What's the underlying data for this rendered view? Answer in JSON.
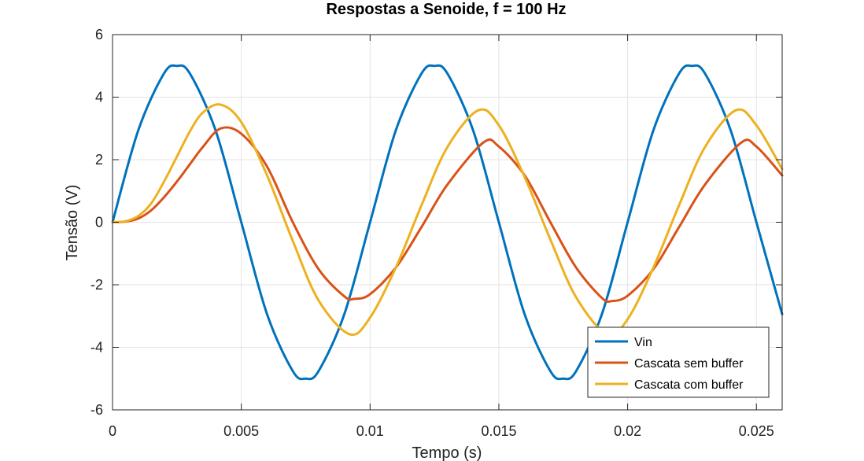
{
  "chart_data": {
    "type": "line",
    "title": "Respostas a Senoide, f = 100 Hz",
    "xlabel": "Tempo (s)",
    "ylabel": "Tensão (V)",
    "xlim": [
      0,
      0.026
    ],
    "ylim": [
      -6,
      6
    ],
    "grid": true,
    "legend_position": "bottom-right",
    "x_ticks": [
      0,
      0.005,
      0.01,
      0.015,
      0.02,
      0.025
    ],
    "x_tick_labels": [
      "0",
      "0.005",
      "0.01",
      "0.015",
      "0.02",
      "0.025"
    ],
    "y_ticks": [
      -6,
      -4,
      -2,
      0,
      2,
      4,
      6
    ],
    "y_tick_labels": [
      "-6",
      "-4",
      "-2",
      "0",
      "2",
      "4",
      "6"
    ],
    "series": [
      {
        "name": "Vin",
        "color": "#0072BD",
        "x": [
          0,
          0.001,
          0.002,
          0.0025,
          0.003,
          0.004,
          0.005,
          0.006,
          0.007,
          0.0075,
          0.008,
          0.009,
          0.01,
          0.011,
          0.012,
          0.0125,
          0.013,
          0.014,
          0.015,
          0.016,
          0.017,
          0.0175,
          0.018,
          0.019,
          0.02,
          0.021,
          0.022,
          0.0225,
          0.023,
          0.024,
          0.025,
          0.026
        ],
        "y": [
          0,
          2.94,
          4.76,
          5.0,
          4.76,
          2.94,
          0,
          -2.94,
          -4.76,
          -5.0,
          -4.76,
          -2.94,
          0,
          2.94,
          4.76,
          5.0,
          4.76,
          2.94,
          0,
          -2.94,
          -4.76,
          -5.0,
          -4.76,
          -2.94,
          0,
          2.94,
          4.76,
          5.0,
          4.76,
          2.94,
          0,
          -2.94
        ]
      },
      {
        "name": "Cascata sem buffer",
        "color": "#D95319",
        "x": [
          0,
          0.0005,
          0.001,
          0.0015,
          0.002,
          0.0025,
          0.003,
          0.0035,
          0.0042,
          0.005,
          0.006,
          0.007,
          0.008,
          0.009,
          0.0094,
          0.01,
          0.011,
          0.012,
          0.013,
          0.0144,
          0.015,
          0.016,
          0.017,
          0.018,
          0.019,
          0.0194,
          0.02,
          0.021,
          0.022,
          0.023,
          0.0244,
          0.025,
          0.026
        ],
        "y": [
          0,
          0.02,
          0.12,
          0.38,
          0.8,
          1.3,
          1.85,
          2.4,
          3.0,
          2.83,
          1.78,
          0.0,
          -1.5,
          -2.37,
          -2.45,
          -2.3,
          -1.45,
          -0.15,
          1.2,
          2.55,
          2.42,
          1.5,
          0.0,
          -1.45,
          -2.42,
          -2.52,
          -2.35,
          -1.5,
          -0.15,
          1.2,
          2.54,
          2.42,
          1.5
        ]
      },
      {
        "name": "Cascata com buffer",
        "color": "#EDB120",
        "x": [
          0,
          0.0005,
          0.001,
          0.0015,
          0.002,
          0.0025,
          0.003,
          0.0035,
          0.0042,
          0.005,
          0.006,
          0.007,
          0.008,
          0.0092,
          0.01,
          0.011,
          0.012,
          0.013,
          0.0142,
          0.015,
          0.016,
          0.017,
          0.018,
          0.0192,
          0.02,
          0.021,
          0.022,
          0.023,
          0.0242,
          0.025,
          0.026
        ],
        "y": [
          0,
          0.03,
          0.2,
          0.6,
          1.3,
          2.1,
          2.9,
          3.5,
          3.76,
          3.2,
          1.5,
          -0.6,
          -2.5,
          -3.58,
          -3.05,
          -1.45,
          0.55,
          2.4,
          3.58,
          3.1,
          1.45,
          -0.55,
          -2.4,
          -3.58,
          -3.1,
          -1.45,
          0.55,
          2.4,
          3.58,
          3.1,
          1.7
        ]
      }
    ]
  }
}
